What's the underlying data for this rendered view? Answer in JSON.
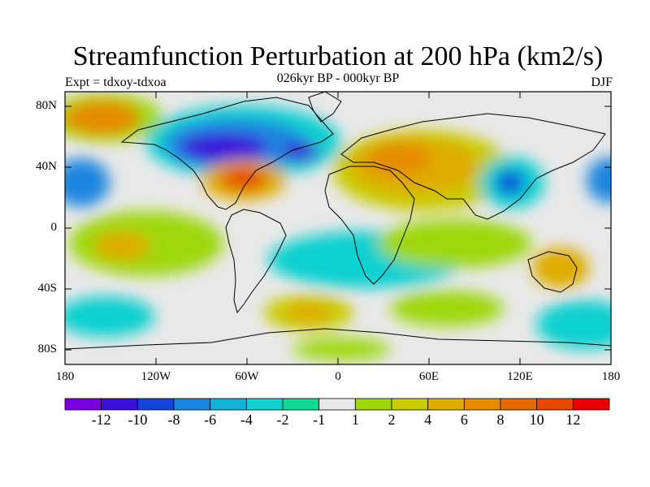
{
  "header": {
    "title": "Streamfunction Perturbation at 200 hPa (km2/s)",
    "subtitle": "026kyr BP - 000kyr BP",
    "left_label": "Expt = tdxoy-tdxoa",
    "right_label": "DJF"
  },
  "map": {
    "lat_labels": [
      "80N",
      "40N",
      "0",
      "40S",
      "80S"
    ],
    "lon_labels": [
      "180",
      "120W",
      "60W",
      "0",
      "60E",
      "120E",
      "180"
    ],
    "land_color": "#e8e8e8"
  },
  "colorbar": {
    "labels": [
      "-12",
      "-10",
      "-8",
      "-6",
      "-4",
      "-2",
      "-1",
      "1",
      "2",
      "4",
      "6",
      "8",
      "10",
      "12"
    ],
    "colors": [
      "#7a00e0",
      "#3a0fd8",
      "#1047d8",
      "#1a86e0",
      "#14b1d8",
      "#10d0d0",
      "#10d896",
      "#e8e8e8",
      "#9ed80c",
      "#c8cc00",
      "#dfac00",
      "#e68a00",
      "#e26a00",
      "#e64800",
      "#e60000"
    ]
  }
}
